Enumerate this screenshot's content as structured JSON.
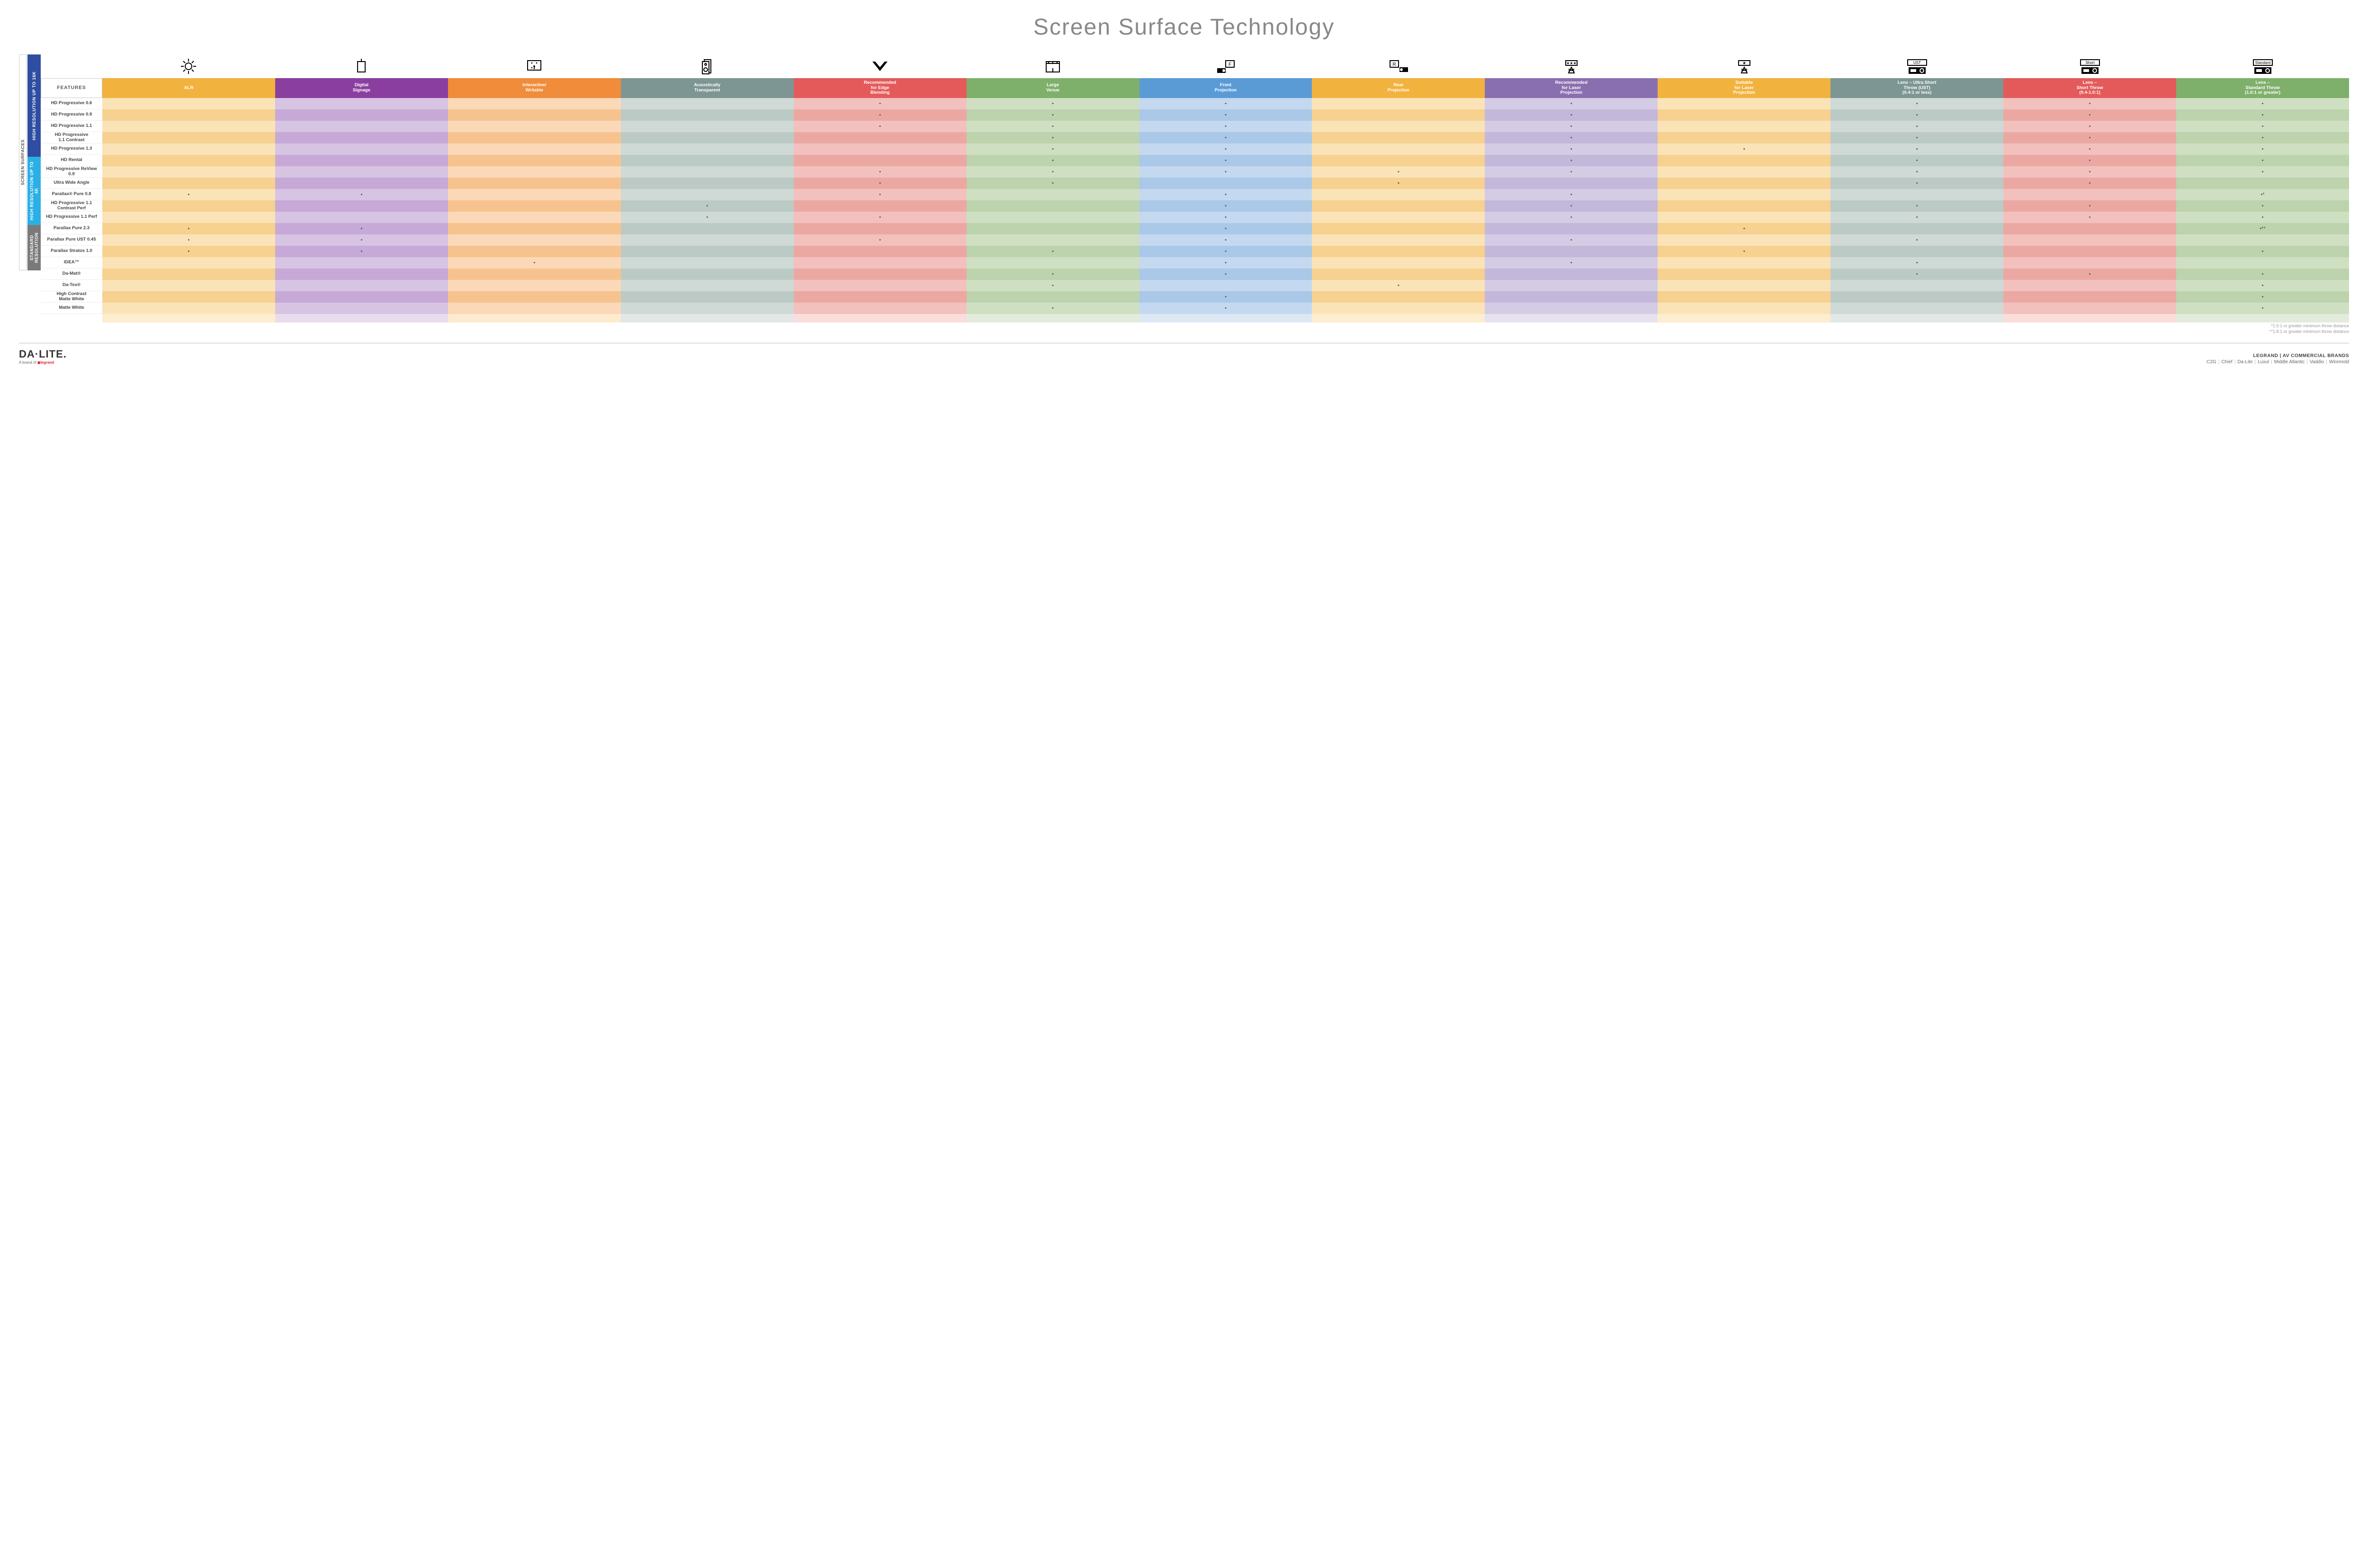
{
  "title": "Screen Surface Technology",
  "colors": {
    "headers": [
      "#f2b23e",
      "#8a3fa0",
      "#f08c3a",
      "#7d9693",
      "#e45a5a",
      "#7fb06b",
      "#5a9bd5",
      "#f2b23e",
      "#8a6fb0",
      "#f2b23e",
      "#7d9693",
      "#e45a5a",
      "#7fb06b"
    ],
    "group16k": "#2f4ea1",
    "group4k": "#2bb0e6",
    "groupStd": "#7a7a7a",
    "rowLight": [
      "#fbe3b8",
      "#d7c4e3",
      "#fbd9b8",
      "#cfd9d6",
      "#f3c1bd",
      "#cfe0c2",
      "#c4d9ef",
      "#fbe3b8",
      "#d4cce4",
      "#fbe3b8",
      "#cfd9d6",
      "#f3c1bd",
      "#cfe0c2"
    ],
    "rowDark": [
      "#f6d18f",
      "#c6a9d6",
      "#f6c38f",
      "#bccac6",
      "#eba8a3",
      "#bcd3ae",
      "#aac8e8",
      "#f6d18f",
      "#c3b7da",
      "#f6d18f",
      "#bccac6",
      "#eba8a3",
      "#bcd3ae"
    ],
    "footerRow": [
      "#fdeecf",
      "#e9dced",
      "#fdeacf",
      "#e2e8e6",
      "#f9dedb",
      "#e3ecdb",
      "#dce9f5",
      "#fdeecf",
      "#e7e2ef",
      "#fdeecf",
      "#e2e8e6",
      "#f9dedb",
      "#e3ecdb"
    ]
  },
  "features_label": "FEATURES",
  "columns": [
    {
      "label": "ALR",
      "icon": "bulb"
    },
    {
      "label": "Digital\nSignage",
      "icon": "signage"
    },
    {
      "label": "Interactive/\nWritable",
      "icon": "touch"
    },
    {
      "label": "Acoustically\nTransparent",
      "icon": "speaker"
    },
    {
      "label": "Recommended\nfor Edge\nBlending",
      "icon": "blend"
    },
    {
      "label": "Large\nVenue",
      "icon": "venue"
    },
    {
      "label": "Front\nProjection",
      "icon": "front"
    },
    {
      "label": "Rear\nProjection",
      "icon": "rear"
    },
    {
      "label": "Recommended\nfor Laser\nProjection",
      "icon": "laser3"
    },
    {
      "label": "Suitable\nfor Laser\nProjection",
      "icon": "laser1"
    },
    {
      "label": "Lens – Ultra Short\nThrow (UST)\n(0.4:1 or less)",
      "icon": "ust"
    },
    {
      "label": "Lens –\nShort Throw\n(0.4-1.0:1)",
      "icon": "short"
    },
    {
      "label": "Lens –\nStandard Throw\n(1.0:1 or greater)",
      "icon": "standard"
    }
  ],
  "side_outer_label": "SCREEN SURFACES",
  "groups": [
    {
      "label": "HIGH RESOLUTION UP TO 16K",
      "colorKey": "group16k",
      "rows": [
        {
          "label": "HD Progressive 0.6",
          "dots": [
            0,
            0,
            0,
            0,
            1,
            1,
            1,
            0,
            1,
            0,
            1,
            1,
            1
          ]
        },
        {
          "label": "HD Progressive 0.9",
          "dots": [
            0,
            0,
            0,
            0,
            1,
            1,
            1,
            0,
            1,
            0,
            1,
            1,
            1
          ]
        },
        {
          "label": "HD Progressive 1.1",
          "dots": [
            0,
            0,
            0,
            0,
            1,
            1,
            1,
            0,
            1,
            0,
            1,
            1,
            1
          ]
        },
        {
          "label": "HD Progressive\n1.1 Contrast",
          "dots": [
            0,
            0,
            0,
            0,
            0,
            1,
            1,
            0,
            1,
            0,
            1,
            1,
            1
          ]
        },
        {
          "label": "HD Progressive 1.3",
          "dots": [
            0,
            0,
            0,
            0,
            0,
            1,
            1,
            0,
            1,
            1,
            1,
            1,
            1
          ]
        },
        {
          "label": "HD Rental",
          "dots": [
            0,
            0,
            0,
            0,
            0,
            1,
            1,
            0,
            1,
            0,
            1,
            1,
            1
          ]
        },
        {
          "label": "HD Progressive ReView 0.9",
          "dots": [
            0,
            0,
            0,
            0,
            1,
            1,
            1,
            1,
            1,
            0,
            1,
            1,
            1
          ]
        },
        {
          "label": "Ultra Wide Angle",
          "dots": [
            0,
            0,
            0,
            0,
            1,
            1,
            0,
            1,
            0,
            0,
            1,
            1,
            0
          ]
        },
        {
          "label": "Parallax® Pure 0.8",
          "dots": [
            1,
            1,
            0,
            0,
            1,
            0,
            1,
            0,
            1,
            0,
            0,
            0,
            "•*"
          ]
        }
      ]
    },
    {
      "label": "HIGH RESOLUTION UP TO 4K",
      "colorKey": "group4k",
      "rows": [
        {
          "label": "HD Progressive 1.1\nContrast Perf",
          "dots": [
            0,
            0,
            0,
            1,
            0,
            0,
            1,
            0,
            1,
            0,
            1,
            1,
            1
          ]
        },
        {
          "label": "HD Progressive 1.1 Perf",
          "dots": [
            0,
            0,
            0,
            1,
            1,
            0,
            1,
            0,
            1,
            0,
            1,
            1,
            1
          ]
        },
        {
          "label": "Parallax Pure 2.3",
          "dots": [
            1,
            1,
            0,
            0,
            0,
            0,
            1,
            0,
            0,
            1,
            0,
            0,
            "•**"
          ]
        },
        {
          "label": "Parallax Pure UST 0.45",
          "dots": [
            1,
            1,
            0,
            0,
            1,
            0,
            1,
            0,
            1,
            0,
            1,
            0,
            0
          ]
        },
        {
          "label": "Parallax Stratos 1.0",
          "dots": [
            1,
            1,
            0,
            0,
            0,
            1,
            1,
            0,
            0,
            1,
            0,
            0,
            1
          ]
        },
        {
          "label": "IDEA™",
          "dots": [
            0,
            0,
            1,
            0,
            0,
            0,
            1,
            0,
            1,
            0,
            1,
            0,
            0
          ]
        }
      ]
    },
    {
      "label": "STANDARD\nRESOLUTION",
      "colorKey": "groupStd",
      "rows": [
        {
          "label": "Da-Mat®",
          "dots": [
            0,
            0,
            0,
            0,
            0,
            1,
            1,
            0,
            0,
            0,
            1,
            1,
            1
          ]
        },
        {
          "label": "Da-Tex®",
          "dots": [
            0,
            0,
            0,
            0,
            0,
            1,
            0,
            1,
            0,
            0,
            0,
            0,
            1
          ]
        },
        {
          "label": "High Contrast\nMatte White",
          "dots": [
            0,
            0,
            0,
            0,
            0,
            0,
            1,
            0,
            0,
            0,
            0,
            0,
            1
          ]
        },
        {
          "label": "Matte White",
          "dots": [
            0,
            0,
            0,
            0,
            0,
            1,
            1,
            0,
            0,
            0,
            0,
            0,
            1
          ]
        }
      ]
    }
  ],
  "footnotes": [
    "*1.5:1 or greater minimum throw distance",
    "**1.8:1 or greater minimum throw distance"
  ],
  "logo": {
    "main": "DA·LITE.",
    "sub_prefix": "A brand of ",
    "sub_brand": "legrand"
  },
  "brands": {
    "title": "LEGRAND | AV COMMERCIAL BRANDS",
    "list": [
      "C2G",
      "Chief",
      "Da-Lite",
      "Luxul",
      "Middle Atlantic",
      "Vaddio",
      "Wiremold"
    ]
  }
}
